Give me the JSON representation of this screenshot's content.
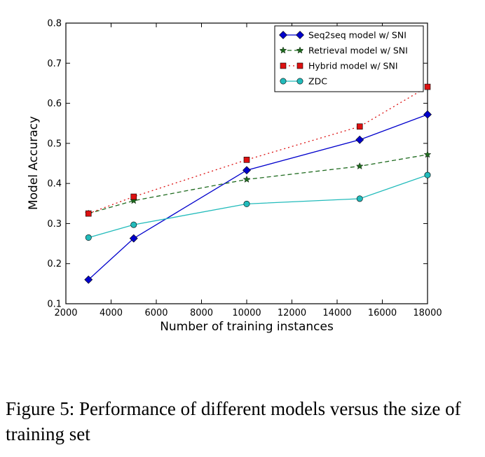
{
  "chart_data": {
    "type": "line",
    "xlabel": "Number of training instances",
    "ylabel": "Model Accuracy",
    "xlim": [
      2000,
      18000
    ],
    "ylim": [
      0.1,
      0.8
    ],
    "xticks": [
      2000,
      4000,
      6000,
      8000,
      10000,
      12000,
      14000,
      16000,
      18000
    ],
    "yticks": [
      0.1,
      0.2,
      0.3,
      0.4,
      0.5,
      0.6,
      0.7,
      0.8
    ],
    "grid": false,
    "legend_position": "top-right",
    "x": [
      3000,
      5000,
      10000,
      15000,
      18000
    ],
    "series": [
      {
        "name": "Seq2seq model w/ SNI",
        "values": [
          0.16,
          0.263,
          0.433,
          0.509,
          0.572
        ],
        "color": "#0000cc",
        "line": "solid",
        "marker": "diamond"
      },
      {
        "name": "Retrieval model w/ SNI",
        "values": [
          0.325,
          0.357,
          0.41,
          0.443,
          0.472
        ],
        "color": "#1f6b1f",
        "line": "dashed",
        "marker": "star"
      },
      {
        "name": "Hybrid model w/ SNI",
        "values": [
          0.325,
          0.367,
          0.459,
          0.542,
          0.641
        ],
        "color": "#dd1111",
        "line": "dotted",
        "marker": "square"
      },
      {
        "name": "ZDC",
        "values": [
          0.265,
          0.297,
          0.349,
          0.362,
          0.421
        ],
        "color": "#22bbbb",
        "line": "solid",
        "marker": "circle"
      }
    ]
  },
  "caption": "Figure 5: Performance of different models versus the size of training set"
}
